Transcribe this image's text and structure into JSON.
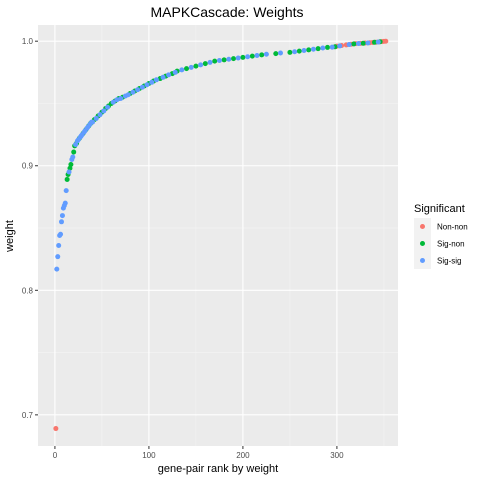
{
  "chart_data": {
    "type": "scatter",
    "title": "MAPKCascade: Weights",
    "xlabel": "gene-pair rank by weight",
    "ylabel": "weight",
    "xlim": [
      -18,
      365
    ],
    "ylim": [
      0.675,
      1.013
    ],
    "x_ticks": [
      0,
      100,
      200,
      300
    ],
    "y_ticks": [
      0.7,
      0.8,
      0.9,
      1.0
    ],
    "x_tick_labels": [
      "0",
      "100",
      "200",
      "300"
    ],
    "y_tick_labels": [
      "0.7",
      "0.8",
      "0.9",
      "1.0"
    ],
    "grid": true,
    "legend": {
      "title": "Significant",
      "position": "right",
      "entries": [
        {
          "label": "Non-non",
          "color": "#f8766d"
        },
        {
          "label": "Sig-non",
          "color": "#00ba38"
        },
        {
          "label": "Sig-sig",
          "color": "#619cff"
        }
      ]
    },
    "series": [
      {
        "name": "Non-non",
        "color": "#f8766d",
        "points": [
          [
            1,
            0.689
          ],
          [
            300,
            0.996
          ],
          [
            305,
            0.9965
          ],
          [
            310,
            0.997
          ],
          [
            315,
            0.9975
          ],
          [
            320,
            0.998
          ],
          [
            325,
            0.9982
          ],
          [
            330,
            0.9985
          ],
          [
            335,
            0.9988
          ],
          [
            338,
            0.999
          ],
          [
            342,
            0.9992
          ],
          [
            345,
            0.9995
          ],
          [
            348,
            0.9997
          ],
          [
            350,
            0.9999
          ],
          [
            352,
            1.0
          ]
        ]
      },
      {
        "name": "Sig-non",
        "color": "#00ba38",
        "points": [
          [
            13,
            0.889
          ],
          [
            14,
            0.893
          ],
          [
            16,
            0.898
          ],
          [
            17,
            0.901
          ],
          [
            20,
            0.911
          ],
          [
            21,
            0.916
          ],
          [
            23,
            0.918
          ],
          [
            26,
            0.922
          ],
          [
            30,
            0.926
          ],
          [
            33,
            0.929
          ],
          [
            36,
            0.932
          ],
          [
            38,
            0.934
          ],
          [
            42,
            0.937
          ],
          [
            46,
            0.94
          ],
          [
            50,
            0.943
          ],
          [
            54,
            0.946
          ],
          [
            57,
            0.948
          ],
          [
            60,
            0.95
          ],
          [
            64,
            0.952
          ],
          [
            68,
            0.954
          ],
          [
            72,
            0.955
          ],
          [
            80,
            0.958
          ],
          [
            85,
            0.96
          ],
          [
            90,
            0.962
          ],
          [
            95,
            0.964
          ],
          [
            100,
            0.966
          ],
          [
            105,
            0.968
          ],
          [
            112,
            0.97
          ],
          [
            118,
            0.972
          ],
          [
            125,
            0.974
          ],
          [
            130,
            0.976
          ],
          [
            140,
            0.978
          ],
          [
            150,
            0.98
          ],
          [
            160,
            0.982
          ],
          [
            170,
            0.984
          ],
          [
            180,
            0.985
          ],
          [
            190,
            0.986
          ],
          [
            200,
            0.987
          ],
          [
            210,
            0.988
          ],
          [
            220,
            0.989
          ],
          [
            235,
            0.99
          ],
          [
            250,
            0.991
          ],
          [
            260,
            0.992
          ],
          [
            270,
            0.993
          ],
          [
            280,
            0.994
          ],
          [
            290,
            0.995
          ],
          [
            298,
            0.9955
          ],
          [
            318,
            0.9978
          ],
          [
            328,
            0.9983
          ],
          [
            340,
            0.9991
          ],
          [
            346,
            0.9996
          ]
        ]
      },
      {
        "name": "Sig-sig",
        "color": "#619cff",
        "points": [
          [
            2,
            0.817
          ],
          [
            3,
            0.827
          ],
          [
            4,
            0.836
          ],
          [
            5,
            0.844
          ],
          [
            6,
            0.845
          ],
          [
            7,
            0.855
          ],
          [
            8,
            0.86
          ],
          [
            9,
            0.866
          ],
          [
            10,
            0.868
          ],
          [
            11,
            0.87
          ],
          [
            12,
            0.88
          ],
          [
            15,
            0.895
          ],
          [
            18,
            0.905
          ],
          [
            19,
            0.907
          ],
          [
            22,
            0.917
          ],
          [
            24,
            0.92
          ],
          [
            25,
            0.921
          ],
          [
            27,
            0.923
          ],
          [
            28,
            0.924
          ],
          [
            29,
            0.925
          ],
          [
            31,
            0.927
          ],
          [
            32,
            0.928
          ],
          [
            34,
            0.93
          ],
          [
            35,
            0.931
          ],
          [
            37,
            0.933
          ],
          [
            39,
            0.935
          ],
          [
            40,
            0.935
          ],
          [
            44,
            0.938
          ],
          [
            48,
            0.941
          ],
          [
            52,
            0.944
          ],
          [
            56,
            0.947
          ],
          [
            62,
            0.951
          ],
          [
            66,
            0.953
          ],
          [
            70,
            0.954
          ],
          [
            75,
            0.956
          ],
          [
            78,
            0.957
          ],
          [
            83,
            0.959
          ],
          [
            88,
            0.961
          ],
          [
            93,
            0.963
          ],
          [
            98,
            0.965
          ],
          [
            103,
            0.967
          ],
          [
            108,
            0.969
          ],
          [
            115,
            0.971
          ],
          [
            121,
            0.973
          ],
          [
            128,
            0.975
          ],
          [
            135,
            0.977
          ],
          [
            145,
            0.979
          ],
          [
            155,
            0.981
          ],
          [
            165,
            0.983
          ],
          [
            175,
            0.9845
          ],
          [
            185,
            0.9855
          ],
          [
            195,
            0.9865
          ],
          [
            205,
            0.9875
          ],
          [
            215,
            0.9885
          ],
          [
            225,
            0.9895
          ],
          [
            240,
            0.9905
          ],
          [
            255,
            0.9915
          ],
          [
            265,
            0.9925
          ],
          [
            275,
            0.9935
          ],
          [
            285,
            0.9945
          ],
          [
            295,
            0.9952
          ],
          [
            303,
            0.9962
          ],
          [
            313,
            0.9973
          ],
          [
            323,
            0.9981
          ],
          [
            333,
            0.9986
          ],
          [
            344,
            0.9993
          ]
        ]
      }
    ]
  }
}
